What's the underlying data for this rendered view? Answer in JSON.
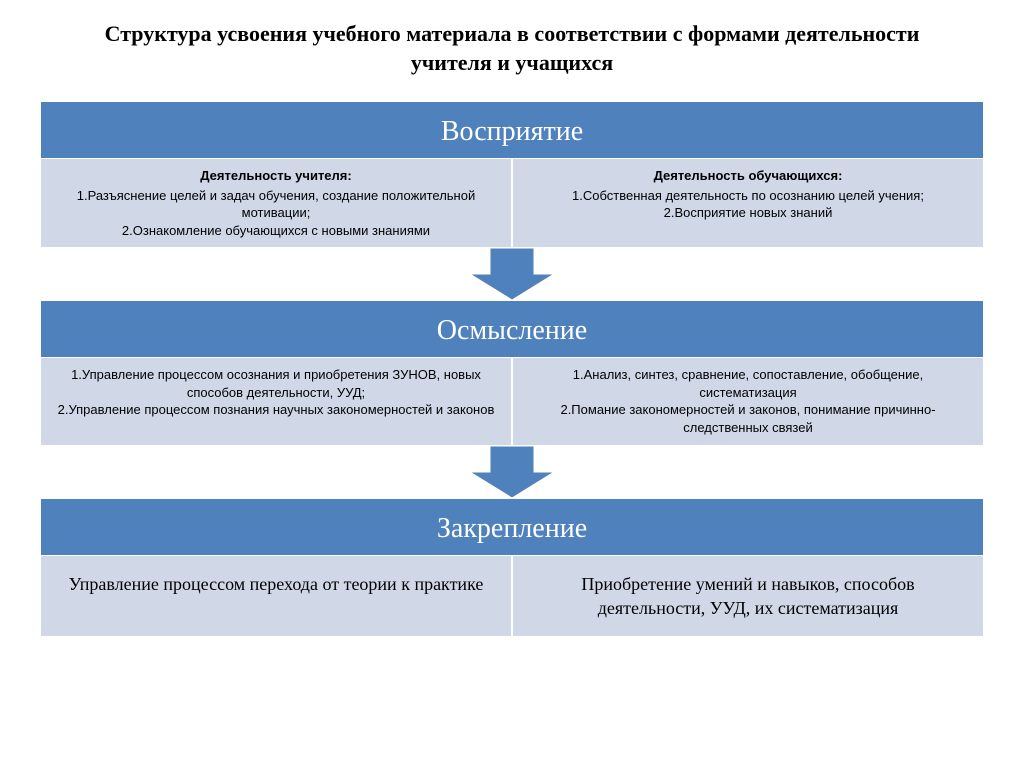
{
  "title": "Структура усвоения учебного материала в соответствии с формами деятельности учителя и учащихся",
  "colors": {
    "header_bg": "#4f81bd",
    "body_bg": "#d0d8e7",
    "arrow_fill": "#4f81bd",
    "text_light": "#ffffff",
    "text_dark": "#000000"
  },
  "arrow": {
    "width": 84,
    "height": 52,
    "shaft_w": 44,
    "shaft_h": 26
  },
  "stages": [
    {
      "header": "Восприятие",
      "left": {
        "subhead": "Деятельность учителя:",
        "lines": [
          "1.Разъяснение целей и задач обучения, создание положительной мотивации;",
          "2.Ознакомление обучающихся с новыми знаниями"
        ]
      },
      "right": {
        "subhead": "Деятельность обучающихся:",
        "lines": [
          "1.Собственная деятельность по осознанию целей учения;",
          "2.Восприятие новых знаний"
        ]
      }
    },
    {
      "header": "Осмысление",
      "left": {
        "subhead": "",
        "lines": [
          "1.Управление процессом осознания и приобретения ЗУНОВ, новых способов деятельности, УУД;",
          "2.Управление процессом познания научных закономерностей и законов"
        ]
      },
      "right": {
        "subhead": "",
        "lines": [
          "1.Анализ, синтез, сравнение, сопоставление, обобщение, систематизация",
          "2.Помание закономерностей и законов, понимание причинно-следственных связей"
        ]
      }
    },
    {
      "header": "Закрепление",
      "left": {
        "subhead": "",
        "lines": [
          "Управление процессом перехода от теории к практике"
        ]
      },
      "right": {
        "subhead": "",
        "lines": [
          "Приобретение умений и навыков, способов деятельности, УУД, их систематизация"
        ]
      }
    }
  ]
}
